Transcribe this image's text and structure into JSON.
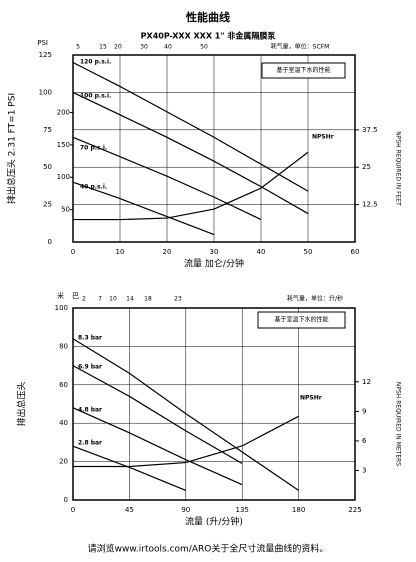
{
  "chart_data": [
    {
      "type": "line",
      "title": "性能曲线",
      "subtitle": "PX40P-XXX XXX 1\" 非金属隔膜泵",
      "x_label": "流量 加仑/分钟",
      "y_label": "排出总压头 2.31 FT=1 PSI",
      "y_unit": "PSI",
      "y2_label": "NPSH REQUIRED IN FEET",
      "air_label": "耗气量，单位：SCFM",
      "air_ticks": [
        5,
        15,
        20,
        30,
        40,
        50
      ],
      "note": "基于室温下水的性能",
      "x": [
        0,
        10,
        20,
        30,
        40,
        50
      ],
      "xlim": [
        0,
        60
      ],
      "xticks": [
        0,
        10,
        20,
        30,
        40,
        50,
        60
      ],
      "ylim": [
        0,
        125
      ],
      "yticks": [
        0,
        25,
        50,
        75,
        100,
        125
      ],
      "y3lim": [
        0,
        288.75
      ],
      "y3ticks": [
        50,
        100,
        150,
        200
      ],
      "y2lim": [
        0,
        62.5
      ],
      "y2ticks": [
        12.5,
        25,
        37.5
      ],
      "grid": true,
      "series": [
        {
          "name": "120 p.s.i.",
          "color": "#000000",
          "values": [
            120,
            104,
            87,
            70,
            52,
            34
          ]
        },
        {
          "name": "100 p.s.i.",
          "color": "#000000",
          "values": [
            100,
            85,
            70,
            54,
            37,
            19
          ]
        },
        {
          "name": "70 p.s.i.",
          "color": "#000000",
          "values": [
            70,
            57,
            44,
            30,
            15,
            null
          ]
        },
        {
          "name": "40 p.s.i.",
          "color": "#000000",
          "values": [
            40,
            29,
            17,
            5,
            null,
            null
          ]
        },
        {
          "name": "NPSHr",
          "color": "#000000",
          "axis": "y2",
          "values": [
            7.5,
            7.5,
            8,
            11,
            18,
            30
          ]
        }
      ]
    },
    {
      "type": "line",
      "x_label": "流量 (升/分钟)",
      "y_label": "排出总压头",
      "y_unit": "米",
      "air_unit": "巴",
      "y2_label": "NPSH REQUIRED IN METERS",
      "air_label": "耗气量，单位：升/秒",
      "air_ticks": [
        2,
        7,
        10,
        14,
        18,
        23
      ],
      "note": "基于室温下水的性能",
      "x": [
        0,
        45,
        90,
        135,
        180,
        225
      ],
      "xlim": [
        0,
        225
      ],
      "xticks": [
        0,
        45,
        90,
        135,
        180,
        225
      ],
      "ylim": [
        0,
        100
      ],
      "yticks": [
        0,
        20,
        40,
        60,
        80,
        100
      ],
      "y2lim": [
        0,
        19.5
      ],
      "y2ticks": [
        3,
        6,
        9,
        12
      ],
      "grid": true,
      "series": [
        {
          "name": "8.3 bar",
          "color": "#000000",
          "values": [
            84,
            66,
            45,
            25,
            5,
            null
          ]
        },
        {
          "name": "6.9 bar",
          "color": "#000000",
          "values": [
            70,
            54,
            36,
            19,
            null,
            null
          ]
        },
        {
          "name": "4.8 bar",
          "color": "#000000",
          "values": [
            48,
            35,
            21,
            8,
            null,
            null
          ]
        },
        {
          "name": "2.8 bar",
          "color": "#000000",
          "values": [
            28,
            17,
            5,
            null,
            null,
            null
          ]
        },
        {
          "name": "NPSHr",
          "color": "#000000",
          "axis": "y2",
          "values": [
            3.4,
            3.4,
            3.8,
            5.5,
            8.5,
            null
          ]
        }
      ]
    }
  ],
  "footer": "请浏览www.irtools.com/ARO关于全尺寸流量曲线的资料。"
}
